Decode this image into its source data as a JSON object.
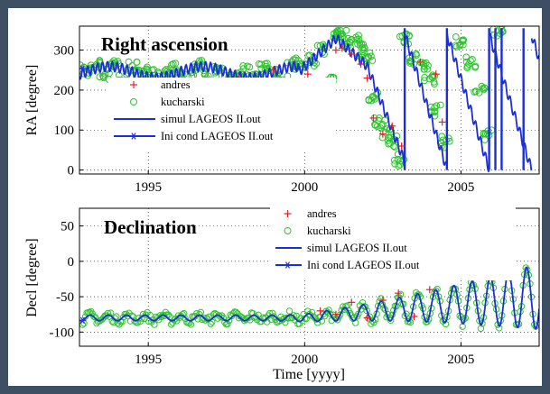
{
  "chart_data": [
    {
      "type": "line",
      "title": "Right ascension",
      "xlabel": "",
      "ylabel": "RA [degree]",
      "xlim": [
        1992.8,
        2007.5
      ],
      "ylim": [
        -10,
        360
      ],
      "xticks": [
        "1995",
        "2000",
        "2005"
      ],
      "yticks": [
        "0",
        "100",
        "200",
        "300"
      ],
      "grid": true,
      "legend_position": "lower-left",
      "series": [
        {
          "name": "andres",
          "marker": "plus",
          "color": "#e8202a",
          "x": [
            1997.9,
            1999.0,
            2000.1,
            2001.0,
            2001.2,
            2001.5,
            2001.8,
            2002.0,
            2002.2,
            2002.5,
            2002.8,
            2003.1,
            2003.7,
            2004.2,
            2004.4
          ],
          "y": [
            230,
            250,
            240,
            300,
            305,
            290,
            265,
            230,
            130,
            90,
            110,
            60,
            270,
            240,
            120
          ]
        },
        {
          "name": "kucharski",
          "marker": "circle",
          "color": "#2ec32e",
          "x": [
            1993.0,
            1993.3,
            1993.6,
            1993.9,
            1994.2,
            1994.5,
            1994.8,
            1995.1,
            1995.4,
            1995.7,
            1996.0,
            1996.3,
            1996.6,
            1996.9,
            1997.2,
            1997.5,
            1997.8,
            1998.1,
            1998.4,
            1998.7,
            1999.0,
            1999.3,
            1999.6,
            1999.9,
            2000.2,
            2000.5,
            2000.8,
            2001.0,
            2001.2,
            2001.4,
            2001.6,
            2001.8,
            2002.0,
            2002.2,
            2002.4,
            2002.6,
            2002.8,
            2003.0,
            2003.2,
            2003.5,
            2003.8,
            2004.0,
            2004.2,
            2004.5,
            2005.0,
            2005.3,
            2005.6,
            2005.9,
            2006.2
          ],
          "y": [
            250,
            262,
            240,
            268,
            228,
            258,
            236,
            245,
            238,
            252,
            244,
            232,
            260,
            236,
            246,
            224,
            236,
            248,
            232,
            262,
            240,
            224,
            262,
            270,
            275,
            300,
            222,
            338,
            345,
            318,
            325,
            300,
            280,
            180,
            120,
            95,
            70,
            25,
            330,
            280,
            255,
            230,
            150,
            70,
            320,
            270,
            200,
            90,
            350
          ]
        },
        {
          "name": "simul LAGEOS II.out",
          "line": "solid",
          "color": "#1c2fd6"
        },
        {
          "name": "Ini cond LAGEOS II.out",
          "line": "solid",
          "marker": "asterisk",
          "color": "#1c2fd6"
        }
      ]
    },
    {
      "type": "line",
      "title": "Declination",
      "xlabel": "Time [yyyy]",
      "ylabel": "Decl [degree]",
      "xlim": [
        1992.8,
        2007.5
      ],
      "ylim": [
        -120,
        75
      ],
      "xticks": [
        "1995",
        "2000",
        "2005"
      ],
      "yticks": [
        "-100",
        "-50",
        "0",
        "50"
      ],
      "grid": true,
      "legend_position": "top-center",
      "series": [
        {
          "name": "andres",
          "marker": "plus",
          "color": "#e8202a",
          "x": [
            2000.5,
            2001.0,
            2001.5,
            2002.0,
            2002.5,
            2003.0,
            2003.5,
            2004.0
          ],
          "y": [
            -70,
            -75,
            -58,
            -80,
            -55,
            -45,
            -78,
            -40
          ]
        },
        {
          "name": "kucharski",
          "marker": "circle",
          "color": "#2ec32e"
        },
        {
          "name": "simul LAGEOS II.out",
          "line": "solid",
          "color": "#1c2fd6"
        },
        {
          "name": "Ini cond LAGEOS II.out",
          "line": "solid",
          "marker": "asterisk",
          "color": "#1c2fd6"
        }
      ]
    }
  ]
}
